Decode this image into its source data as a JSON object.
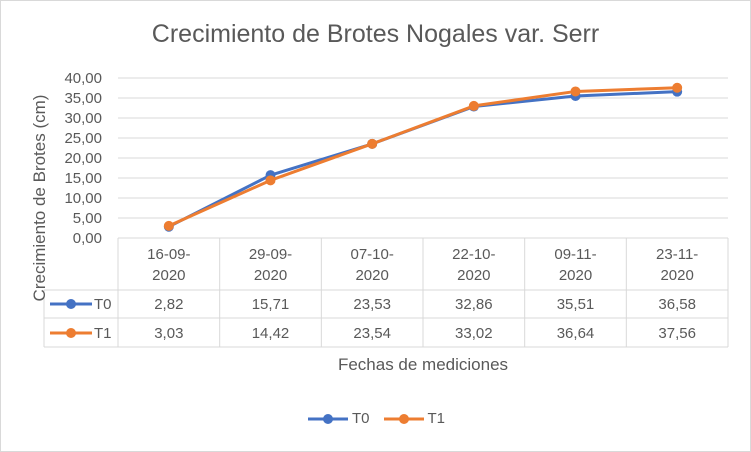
{
  "chart_data": {
    "type": "line",
    "title": "Crecimiento de Brotes Nogales var. Serr",
    "xlabel": "Fechas de mediciones",
    "ylabel": "Crecimiento de Brotes (cm)",
    "categories": [
      [
        "16-09-",
        "2020"
      ],
      [
        "29-09-",
        "2020"
      ],
      [
        "07-10-",
        "2020"
      ],
      [
        "22-10-",
        "2020"
      ],
      [
        "09-11-",
        "2020"
      ],
      [
        "23-11-",
        "2020"
      ]
    ],
    "yticks": [
      "0,00",
      "5,00",
      "10,00",
      "15,00",
      "20,00",
      "25,00",
      "30,00",
      "35,00",
      "40,00"
    ],
    "ylim": [
      0,
      40
    ],
    "series": [
      {
        "name": "T0",
        "color": "#4472c4",
        "values": [
          2.82,
          15.71,
          23.53,
          32.86,
          35.51,
          36.58
        ],
        "labels": [
          "2,82",
          "15,71",
          "23,53",
          "32,86",
          "35,51",
          "36,58"
        ]
      },
      {
        "name": "T1",
        "color": "#ed7d31",
        "values": [
          3.03,
          14.42,
          23.54,
          33.02,
          36.64,
          37.56
        ],
        "labels": [
          "3,03",
          "14,42",
          "23,54",
          "33,02",
          "36,64",
          "37,56"
        ]
      }
    ],
    "data_table": true,
    "legend_position": "bottom",
    "grid": true
  }
}
